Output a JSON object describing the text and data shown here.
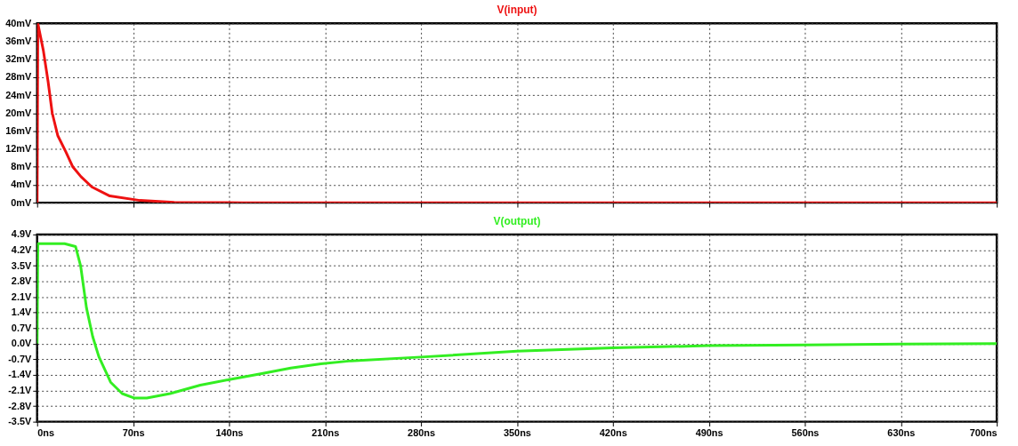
{
  "chart_data": [
    {
      "type": "line",
      "tick_labels": "y",
      "grid": true,
      "line_style": "solid",
      "xlim": [
        0,
        700
      ],
      "xticks": [
        {
          "value": 0,
          "label": null
        },
        {
          "value": 70,
          "label": null
        },
        {
          "value": 140,
          "label": null
        },
        {
          "value": 210,
          "label": null
        },
        {
          "value": 280,
          "label": null
        },
        {
          "value": 350,
          "label": null
        },
        {
          "value": 420,
          "label": null
        },
        {
          "value": 490,
          "label": null
        },
        {
          "value": 560,
          "label": null
        },
        {
          "value": 630,
          "label": null
        },
        {
          "value": 700,
          "label": null
        }
      ],
      "ylim": [
        0,
        40
      ],
      "yticks": [
        {
          "value": 0,
          "label": "0mV"
        },
        {
          "value": 4,
          "label": "4mV"
        },
        {
          "value": 8,
          "label": "8mV"
        },
        {
          "value": 12,
          "label": "12mV"
        },
        {
          "value": 16,
          "label": "16mV"
        },
        {
          "value": 20,
          "label": "20mV"
        },
        {
          "value": 24,
          "label": "24mV"
        },
        {
          "value": 28,
          "label": "28mV"
        },
        {
          "value": 32,
          "label": "32mV"
        },
        {
          "value": 36,
          "label": "36mV"
        },
        {
          "value": 40,
          "label": "40mV"
        }
      ],
      "series": [
        {
          "name": "V(input)",
          "color": "#ee1111",
          "x": [
            0,
            0.5,
            4.5,
            8,
            11,
            15,
            21,
            26,
            32,
            40,
            53,
            75,
            100,
            150,
            700
          ],
          "values": [
            0,
            40,
            34,
            27,
            20,
            15,
            11.3,
            8,
            5.8,
            3.5,
            1.5,
            0.5,
            0.1,
            0,
            0
          ]
        }
      ]
    },
    {
      "type": "line",
      "grid": true,
      "line_style": "solid",
      "xlim": [
        0,
        700
      ],
      "xticks": [
        {
          "value": 0,
          "label": "0ns"
        },
        {
          "value": 70,
          "label": "70ns"
        },
        {
          "value": 140,
          "label": "140ns"
        },
        {
          "value": 210,
          "label": "210ns"
        },
        {
          "value": 280,
          "label": "280ns"
        },
        {
          "value": 350,
          "label": "350ns"
        },
        {
          "value": 420,
          "label": "420ns"
        },
        {
          "value": 490,
          "label": "490ns"
        },
        {
          "value": 560,
          "label": "560ns"
        },
        {
          "value": 630,
          "label": "630ns"
        },
        {
          "value": 700,
          "label": "700ns"
        }
      ],
      "ylim": [
        -3.5,
        4.9
      ],
      "yticks": [
        {
          "value": -3.5,
          "label": "-3.5V"
        },
        {
          "value": -2.8,
          "label": "-2.8V"
        },
        {
          "value": -2.1,
          "label": "-2.1V"
        },
        {
          "value": -1.4,
          "label": "-1.4V"
        },
        {
          "value": -0.7,
          "label": "-0.7V"
        },
        {
          "value": 0,
          "label": "0.0V"
        },
        {
          "value": 0.7,
          "label": "0.7V"
        },
        {
          "value": 1.4,
          "label": "1.4V"
        },
        {
          "value": 2.1,
          "label": "2.1V"
        },
        {
          "value": 2.8,
          "label": "2.8V"
        },
        {
          "value": 3.5,
          "label": "3.5V"
        },
        {
          "value": 4.2,
          "label": "4.2V"
        },
        {
          "value": 4.9,
          "label": "4.9V"
        }
      ],
      "series": [
        {
          "name": "V(output)",
          "color": "#33ee22",
          "x": [
            0,
            0.5,
            20,
            28,
            31.7,
            36,
            40.5,
            45,
            53.6,
            62,
            71,
            80,
            97,
            119,
            141,
            163,
            185,
            207,
            229,
            280,
            350,
            420,
            490,
            560,
            630,
            700
          ],
          "values": [
            0,
            4.49,
            4.49,
            4.36,
            3.5,
            1.6,
            0.32,
            -0.58,
            -1.73,
            -2.24,
            -2.44,
            -2.44,
            -2.24,
            -1.86,
            -1.6,
            -1.35,
            -1.09,
            -0.9,
            -0.77,
            -0.6,
            -0.34,
            -0.19,
            -0.09,
            -0.06,
            -0.02,
            0
          ]
        }
      ]
    }
  ]
}
